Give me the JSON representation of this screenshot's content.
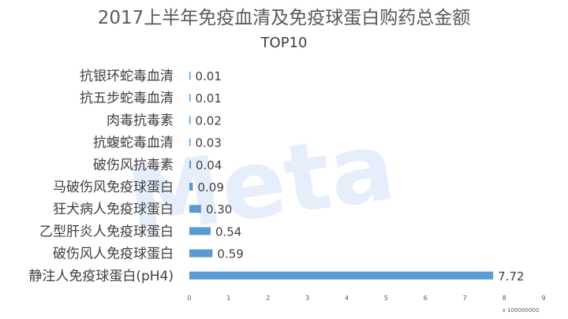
{
  "chart_data": {
    "type": "bar",
    "orientation": "horizontal",
    "title": "2017上半年免疫血清及免疫球蛋白购药总金额",
    "subtitle": "TOP10",
    "categories": [
      "抗银环蛇毒血清",
      "抗五步蛇毒血清",
      "肉毒抗毒素",
      "抗蝮蛇毒血清",
      "破伤风抗毒素",
      "马破伤风免疫球蛋白",
      "狂犬病人免疫球蛋白",
      "乙型肝炎人免疫球蛋白",
      "破伤风人免疫球蛋白",
      "静注人免疫球蛋白(pH4)"
    ],
    "values": [
      0.01,
      0.01,
      0.02,
      0.03,
      0.04,
      0.09,
      0.3,
      0.54,
      0.59,
      7.72
    ],
    "value_labels": [
      "0.01",
      "0.01",
      "0.02",
      "0.03",
      "0.04",
      "0.09",
      "0.30",
      "0.54",
      "0.59",
      "7.72"
    ],
    "x_ticks": [
      "0",
      "1",
      "2",
      "3",
      "4",
      "5",
      "6",
      "7",
      "8",
      "9"
    ],
    "xlim": [
      0,
      9
    ],
    "x_unit": "x 100000000",
    "bar_color": "#5b9bd5",
    "watermark": "Meta",
    "grid": false,
    "legend": "none"
  }
}
